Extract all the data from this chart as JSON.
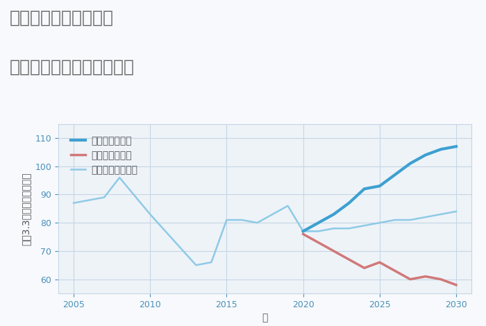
{
  "title_line1": "愛知県常滑市唐崎町の",
  "title_line2": "中古マンションの価格推移",
  "xlabel": "年",
  "ylabel": "坪（3.3㎡）単価（万円）",
  "xlim": [
    2004,
    2031
  ],
  "ylim": [
    55,
    115
  ],
  "yticks": [
    60,
    70,
    80,
    90,
    100,
    110
  ],
  "xticks": [
    2005,
    2010,
    2015,
    2020,
    2025,
    2030
  ],
  "bg_color": "#f7f9fc",
  "plot_bg_color": "#eef3f8",
  "grid_color": "#c5d5e5",
  "normal_scenario": {
    "x": [
      2005,
      2007,
      2008,
      2010,
      2013,
      2014,
      2015,
      2016,
      2017,
      2019,
      2020,
      2021,
      2022,
      2023,
      2024,
      2025,
      2026,
      2027,
      2028,
      2029,
      2030
    ],
    "y": [
      87,
      89,
      96,
      83,
      65,
      66,
      81,
      81,
      80,
      86,
      77,
      77,
      78,
      78,
      79,
      80,
      81,
      81,
      82,
      83,
      84
    ],
    "color": "#8ecae6",
    "linewidth": 1.8,
    "label": "ノーマルシナリオ"
  },
  "good_scenario": {
    "x": [
      2020,
      2021,
      2022,
      2023,
      2024,
      2025,
      2026,
      2027,
      2028,
      2029,
      2030
    ],
    "y": [
      77,
      80,
      83,
      87,
      92,
      93,
      97,
      101,
      104,
      106,
      107
    ],
    "color": "#3da0d0",
    "linewidth": 3.0,
    "label": "グッドシナリオ"
  },
  "bad_scenario": {
    "x": [
      2020,
      2021,
      2022,
      2023,
      2024,
      2025,
      2026,
      2027,
      2028,
      2029,
      2030
    ],
    "y": [
      76,
      73,
      70,
      67,
      64,
      66,
      63,
      60,
      61,
      60,
      58
    ],
    "color": "#d07878",
    "linewidth": 2.5,
    "label": "バッドシナリオ"
  },
  "title_color": "#666666",
  "title_fontsize": 18,
  "legend_fontsize": 10,
  "axis_label_fontsize": 10,
  "tick_fontsize": 9,
  "tick_color": "#4a90b8"
}
